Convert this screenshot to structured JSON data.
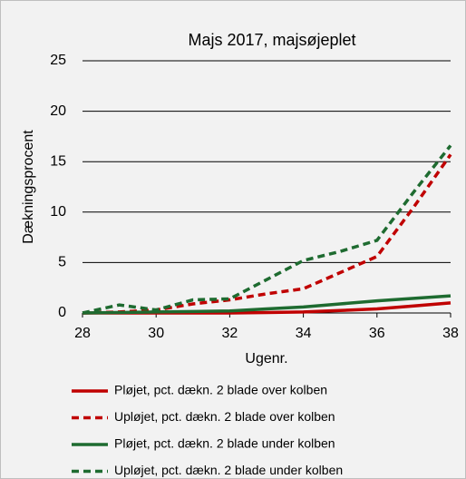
{
  "chart_data": {
    "type": "line",
    "title": "Majs 2017, majsøjeplet",
    "x_label": "Ugenr.",
    "y_label": "Dækningsprocent",
    "x": [
      28,
      29,
      30,
      31,
      32,
      33,
      34,
      35,
      36,
      37,
      38
    ],
    "xlim": [
      28,
      38
    ],
    "xticks": [
      28,
      30,
      32,
      34,
      36,
      38
    ],
    "ylim": [
      0,
      25
    ],
    "yticks": [
      0,
      5,
      10,
      15,
      20,
      25
    ],
    "grid": true,
    "legend": "bottom",
    "series": [
      {
        "name": "Pløjet, pct. dækn. 2 blade over kolben",
        "color": "#c00000",
        "dash": false,
        "values": [
          0,
          0,
          0,
          0,
          0,
          0.05,
          0.1,
          0.25,
          0.4,
          0.7,
          1.0
        ]
      },
      {
        "name": "Upløjet, pct. dækn. 2 blade over kolben",
        "color": "#c00000",
        "dash": true,
        "values": [
          0,
          0.1,
          0.3,
          0.9,
          1.3,
          1.9,
          2.4,
          4.0,
          5.6,
          10.5,
          15.7
        ]
      },
      {
        "name": "Pløjet, pct. dækn. 2 blade under kolben",
        "color": "#1e6b30",
        "dash": false,
        "values": [
          0,
          0.05,
          0.1,
          0.15,
          0.2,
          0.4,
          0.6,
          0.9,
          1.2,
          1.45,
          1.7
        ]
      },
      {
        "name": "Upløjet, pct. dækn. 2 blade under kolben",
        "color": "#1e6b30",
        "dash": true,
        "values": [
          0,
          0.8,
          0.3,
          1.3,
          1.4,
          3.3,
          5.2,
          6.1,
          7.2,
          12.0,
          16.6
        ]
      }
    ]
  }
}
